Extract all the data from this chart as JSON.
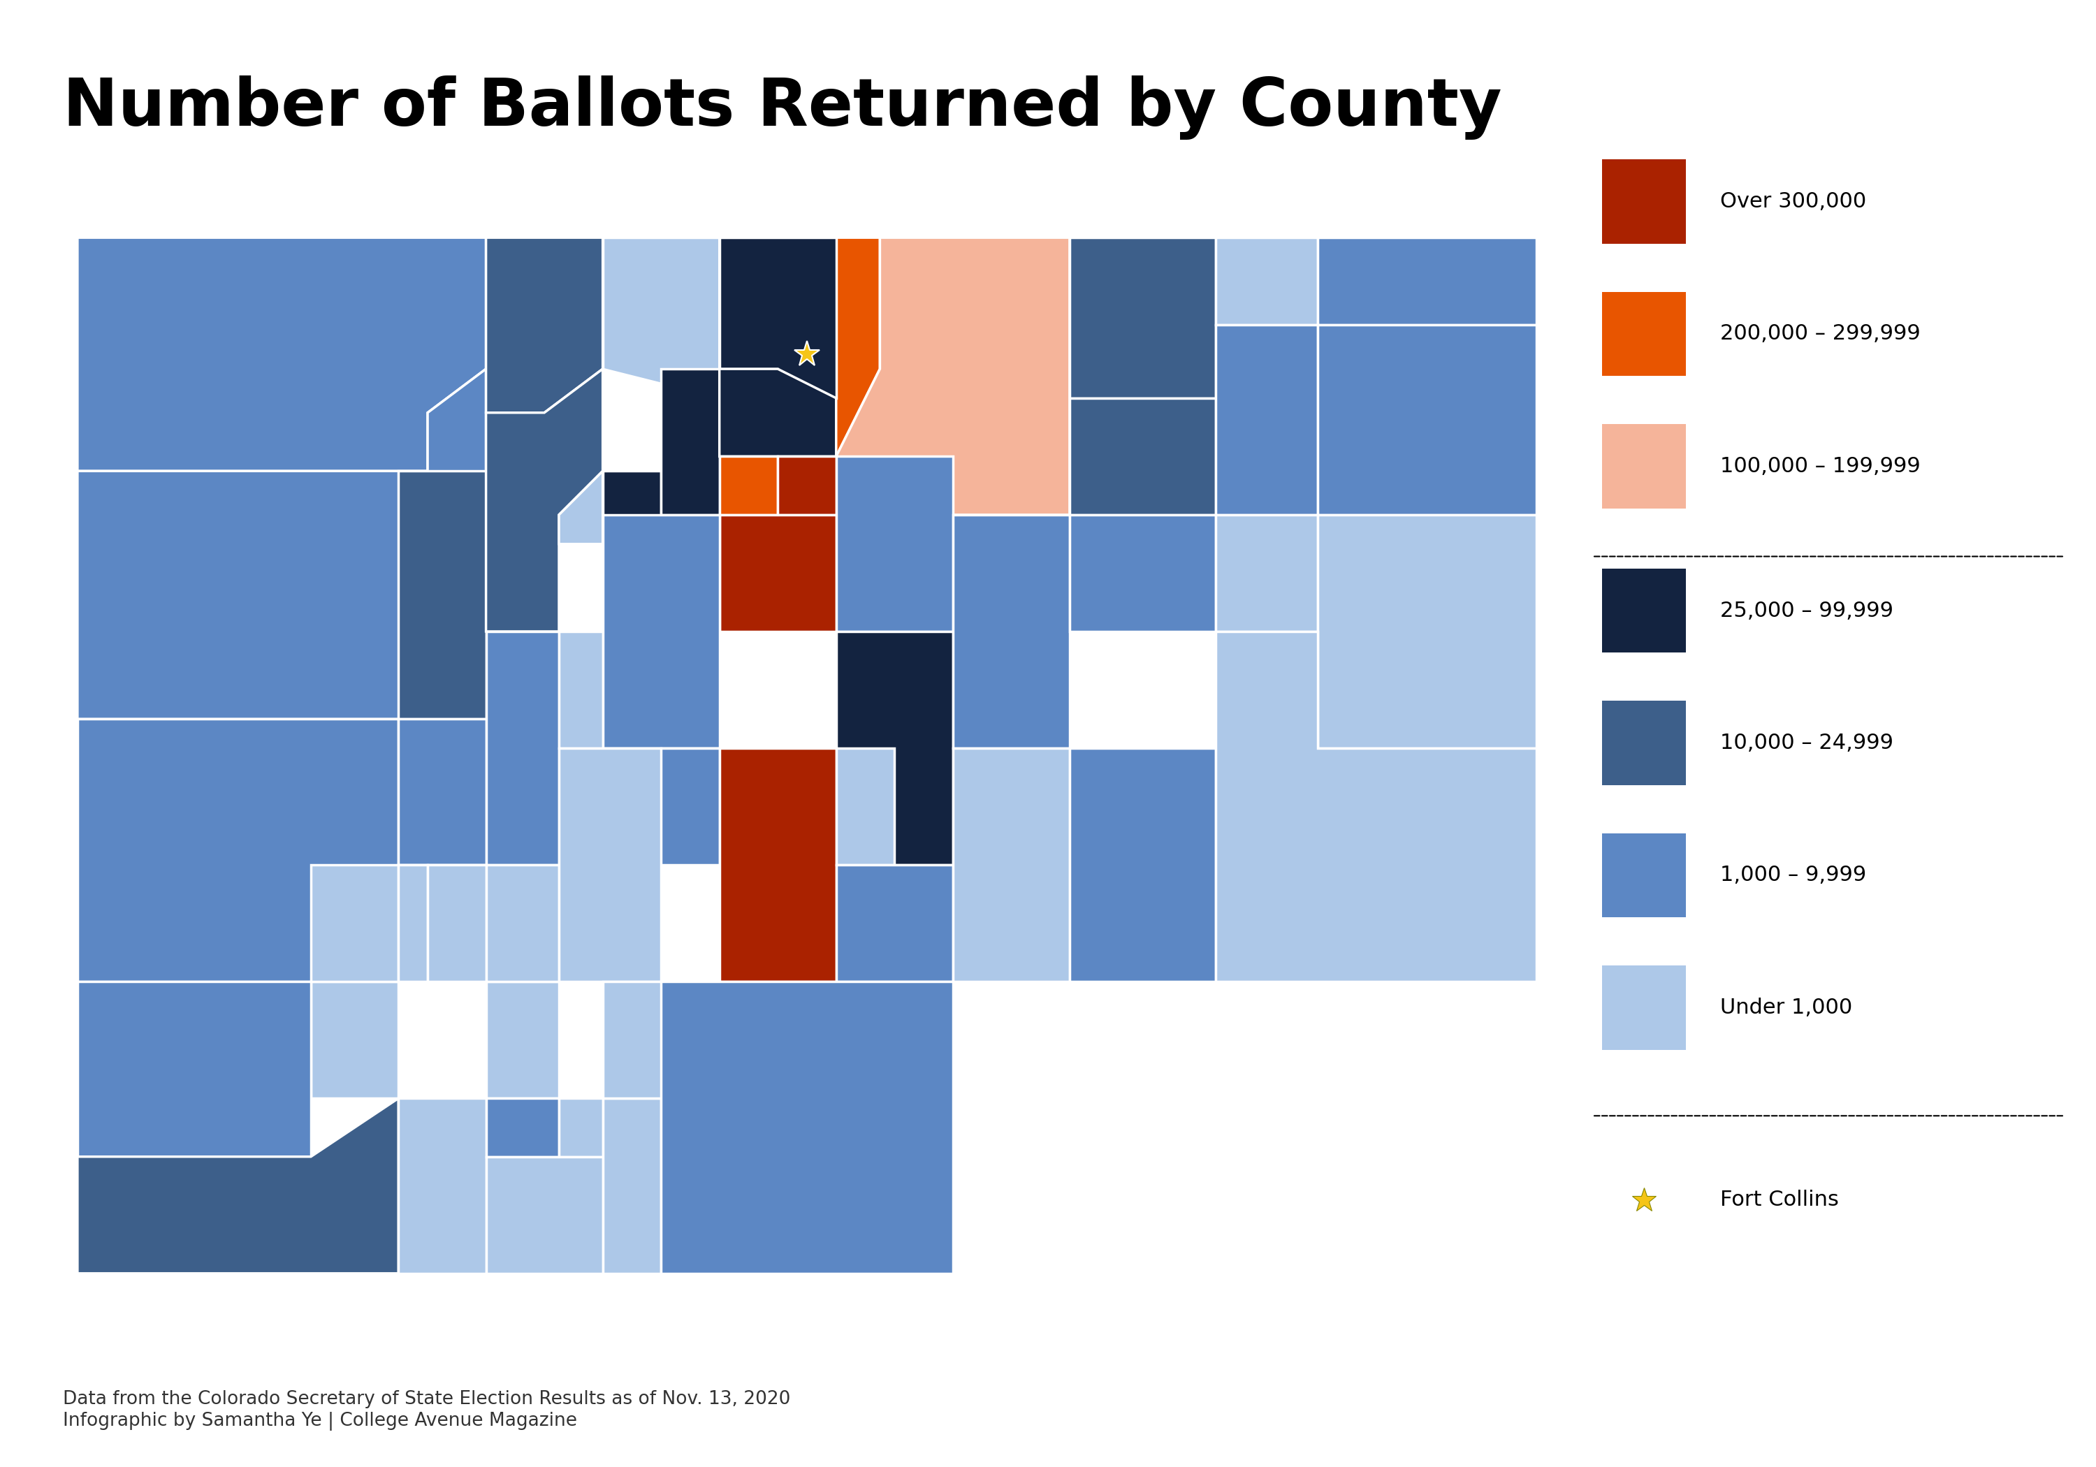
{
  "title": "Number of Ballots Returned by County",
  "title_fontsize": 68,
  "title_fontweight": "black",
  "background_color": "#ffffff",
  "footnote": "Data from the Colorado Secretary of State Election Results as of Nov. 13, 2020\nInfographic by Samantha Ye | College Avenue Magazine",
  "footnote_fontsize": 19,
  "legend_items": [
    {
      "label": "Over 300,000",
      "color": "#aa2200"
    },
    {
      "label": "200,000 – 299,999",
      "color": "#e85500"
    },
    {
      "label": "100,000 – 199,999",
      "color": "#f5b49a"
    },
    {
      "label": "25,000 – 99,999",
      "color": "#132340"
    },
    {
      "label": "10,000 – 24,999",
      "color": "#3d5f8a"
    },
    {
      "label": "1,000 – 9,999",
      "color": "#5c87c4"
    },
    {
      "label": "Under 1,000",
      "color": "#adc8e8"
    }
  ],
  "legend_star_label": "Fort Collins",
  "legend_star_color": "#f5c518",
  "colors": {
    "over300k": "#aa2200",
    "200to300k": "#e85500",
    "100to200k": "#f5b49a",
    "25to100k": "#132340",
    "10to25k": "#3d5f8a",
    "1to10k": "#5c87c4",
    "under1k": "#adc8e8"
  }
}
